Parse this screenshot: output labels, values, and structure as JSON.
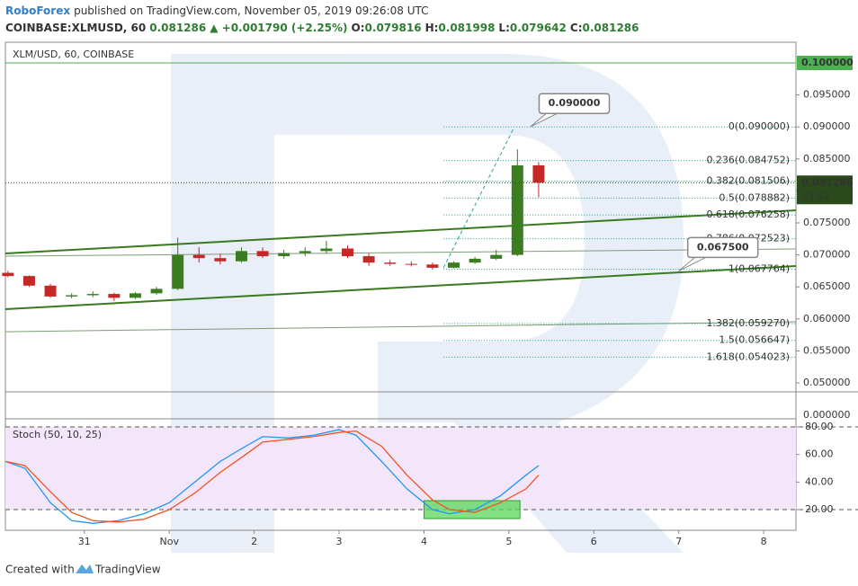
{
  "header": {
    "author": "RoboForex",
    "published": "published on TradingView.com, November 05, 2019 09:26:08 UTC",
    "symbol": "COINBASE:XLMUSD, 60",
    "last": "0.081286",
    "change": "▲ +0.001790 (+2.25%)",
    "ohlc": [
      {
        "label": "O:",
        "value": "0.079816"
      },
      {
        "label": "H:",
        "value": "0.081998"
      },
      {
        "label": "L:",
        "value": "0.079642"
      },
      {
        "label": "C:",
        "value": "0.081286"
      }
    ]
  },
  "chart_data": [
    {
      "type": "candlestick",
      "title": "XLM/USD, 60, COINBASE",
      "x": [
        30.1,
        30.35,
        30.6,
        30.85,
        31.1,
        31.35,
        31.6,
        31.85,
        32.1,
        32.35,
        32.6,
        32.85,
        33.1,
        33.35,
        33.6,
        33.85,
        34.1,
        34.35,
        34.6,
        34.85,
        35.1,
        35.35,
        35.6,
        35.85,
        36.1,
        36.35
      ],
      "open": [
        0.0672,
        0.0667,
        0.0652,
        0.0635,
        0.0637,
        0.0639,
        0.0633,
        0.064,
        0.0647,
        0.07,
        0.0695,
        0.069,
        0.0706,
        0.0698,
        0.0703,
        0.0706,
        0.071,
        0.0698,
        0.0688,
        0.0686,
        0.0685,
        0.068,
        0.0688,
        0.0694,
        0.07,
        0.084
      ],
      "high": [
        0.0675,
        0.0668,
        0.0655,
        0.064,
        0.0643,
        0.0641,
        0.0642,
        0.065,
        0.0727,
        0.0712,
        0.0702,
        0.0712,
        0.0712,
        0.0708,
        0.0712,
        0.0722,
        0.0715,
        0.0702,
        0.0692,
        0.069,
        0.0688,
        0.069,
        0.0697,
        0.0708,
        0.0865,
        0.0845
      ],
      "low": [
        0.0665,
        0.065,
        0.0633,
        0.0632,
        0.0634,
        0.0628,
        0.0631,
        0.0638,
        0.0645,
        0.0688,
        0.0685,
        0.0688,
        0.0695,
        0.0694,
        0.0698,
        0.0702,
        0.0695,
        0.0683,
        0.0683,
        0.0682,
        0.0677,
        0.0679,
        0.0686,
        0.0692,
        0.0698,
        0.079
      ],
      "close": [
        0.0667,
        0.0652,
        0.0635,
        0.0637,
        0.0639,
        0.0633,
        0.064,
        0.0647,
        0.07,
        0.0695,
        0.069,
        0.0706,
        0.0698,
        0.0703,
        0.0706,
        0.071,
        0.0698,
        0.0688,
        0.0686,
        0.0685,
        0.068,
        0.0688,
        0.0694,
        0.07,
        0.084,
        0.081286
      ],
      "up_color": "#3c7d22",
      "down_color": "#c62828",
      "xlim": [
        30.07,
        39.38
      ],
      "ylim": [
        0.0486,
        0.10253
      ],
      "yticks": [
        {
          "value": 0.05,
          "label": "0.050000"
        },
        {
          "value": 0.055,
          "label": "0.055000"
        },
        {
          "value": 0.06,
          "label": "0.060000"
        },
        {
          "value": 0.065,
          "label": "0.065000"
        },
        {
          "value": 0.07,
          "label": "0.070000"
        },
        {
          "value": 0.075,
          "label": "0.075000"
        },
        {
          "value": 0.08,
          "label": "0.080000"
        },
        {
          "value": 0.085,
          "label": "0.085000"
        },
        {
          "value": 0.09,
          "label": "0.090000"
        },
        {
          "value": 0.095,
          "label": "0.095000"
        }
      ],
      "price_line": {
        "price": 0.1,
        "label": "0.100000",
        "color": "#4caf50"
      },
      "last_price": {
        "price": 0.081286,
        "label": "0.081286",
        "countdown": "33:52",
        "color": "#2b4a1c"
      },
      "bottom_label": "0.000000",
      "fib": {
        "x": [
          35.23,
          39.38
        ],
        "color": "#1f9e89",
        "levels": [
          {
            "value": 0.09,
            "label": "0(0.090000)"
          },
          {
            "value": 0.084752,
            "label": "0.236(0.084752)"
          },
          {
            "value": 0.081506,
            "label": "0.382(0.081506)"
          },
          {
            "value": 0.078882,
            "label": "0.5(0.078882)"
          },
          {
            "value": 0.076258,
            "label": "0.618(0.076258)"
          },
          {
            "value": 0.072523,
            "label": "0.786(0.072523)"
          },
          {
            "value": 0.067764,
            "label": "1(0.067764)"
          },
          {
            "value": 0.05927,
            "label": "1.382(0.059270)"
          },
          {
            "value": 0.056647,
            "label": "1.5(0.056647)"
          },
          {
            "value": 0.054023,
            "label": "1.618(0.054023)"
          }
        ]
      },
      "trendlines": [
        {
          "x": [
            30.07,
            39.38
          ],
          "y": [
            0.07022,
            0.07697
          ],
          "color": "#3a7a1e",
          "width": 2
        },
        {
          "x": [
            30.07,
            39.38
          ],
          "y": [
            0.06152,
            0.06826
          ],
          "color": "#3a7a1e",
          "width": 2
        },
        {
          "x": [
            30.07,
            39.38
          ],
          "y": [
            0.0698,
            0.07093
          ],
          "color": "#7f9c74",
          "width": 1
        },
        {
          "x": [
            30.07,
            39.38
          ],
          "y": [
            0.058,
            0.05955
          ],
          "color": "#7f9c74",
          "width": 1
        },
        {
          "x": [
            35.23,
            36.06
          ],
          "y": [
            0.068,
            0.0899
          ],
          "color": "#26a69a",
          "width": 1,
          "dashed": true
        }
      ],
      "callouts": [
        {
          "x": 36.25,
          "price": 0.09,
          "label": "0.090000",
          "color": "#4caf50"
        },
        {
          "x": 38.0,
          "price": 0.0675,
          "label": "0.067500",
          "color": "#e53935"
        }
      ]
    },
    {
      "type": "line",
      "title": "Stoch (50, 10, 25)",
      "x": [
        30.07,
        30.3,
        30.6,
        30.85,
        31.1,
        31.4,
        31.7,
        32.0,
        32.3,
        32.6,
        32.9,
        33.1,
        33.4,
        33.7,
        34.0,
        34.2,
        34.5,
        34.8,
        35.1,
        35.3,
        35.6,
        35.9,
        36.2,
        36.35
      ],
      "series": [
        {
          "color": "#2196f3",
          "values": [
            55,
            50,
            25,
            12,
            10,
            12,
            17,
            25,
            40,
            55,
            66,
            73,
            72,
            74,
            78,
            74,
            55,
            35,
            20,
            17,
            20,
            30,
            45,
            52
          ]
        },
        {
          "color": "#f4511e",
          "values": [
            55,
            52,
            33,
            18,
            12,
            11,
            13,
            20,
            32,
            47,
            60,
            69,
            71,
            73,
            76,
            77,
            66,
            45,
            27,
            20,
            18,
            25,
            35,
            45
          ]
        }
      ],
      "xlim": [
        30.07,
        39.38
      ],
      "ylim": [
        6.3,
        85.9
      ],
      "xticks": [
        31,
        {
          "value": 32,
          "label": "Nov"
        },
        {
          "value": 33,
          "label": "2"
        },
        {
          "value": 34,
          "label": "3"
        },
        {
          "value": 35,
          "label": "4"
        },
        {
          "value": 36,
          "label": "5"
        },
        {
          "value": 37,
          "label": "6"
        },
        {
          "value": 38,
          "label": "7"
        },
        {
          "value": 39,
          "label": "8"
        }
      ],
      "yticks": [
        {
          "value": 20,
          "label": "20.00"
        },
        {
          "value": 40,
          "label": "40.00"
        },
        {
          "value": 60,
          "label": "60.00"
        },
        {
          "value": 80,
          "label": "80.00"
        }
      ],
      "bands": [
        20,
        80
      ],
      "band_color": "#f3e6fb",
      "highlight": {
        "x": [
          35.0,
          36.13
        ],
        "y": [
          13.5,
          26.5
        ],
        "color": "#5ad65a"
      }
    }
  ],
  "footer": {
    "created": "Created with",
    "brand": "TradingView"
  }
}
